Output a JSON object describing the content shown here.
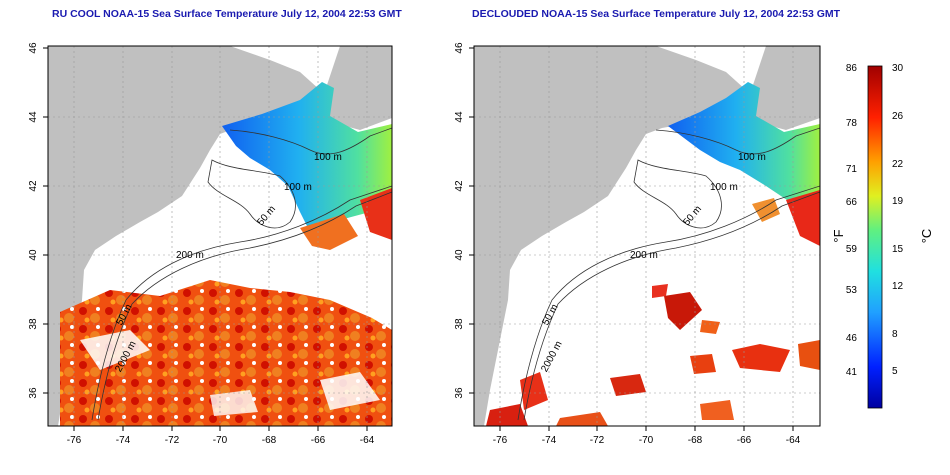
{
  "panels": [
    {
      "title": "RU COOL NOAA-15 Sea Surface Temperature July 12, 2004 22:53 GMT",
      "contours": {
        "c100": "100 m",
        "c50": "50 m",
        "c200": "200 m",
        "c2000": "2000 m",
        "c100b": "100 m",
        "c50b": "50 m"
      }
    },
    {
      "title": "DECLOUDED NOAA-15 Sea Surface Temperature July 12, 2004 22:53 GMT",
      "contours": {
        "c100": "100 m",
        "c50": "50 m",
        "c200": "200 m",
        "c2000": "2000 m",
        "c100b": "100 m",
        "c50b": "50 m"
      }
    }
  ],
  "axes": {
    "x_ticks": [
      "-76",
      "-74",
      "-72",
      "-70",
      "-68",
      "-66",
      "-64"
    ],
    "y_ticks": [
      "46",
      "44",
      "42",
      "40",
      "38",
      "36"
    ]
  },
  "colorbar": {
    "fahrenheit_ticks": [
      "86",
      "78",
      "71",
      "66",
      "59",
      "53",
      "46",
      "41"
    ],
    "celsius_ticks": [
      "30",
      "26",
      "22",
      "19",
      "15",
      "12",
      "8",
      "5"
    ],
    "fahrenheit_label": "°F",
    "celsius_label": "°C",
    "colors": {
      "low": "#0000a0",
      "mid": "#20d0e0",
      "high": "#a00000"
    }
  }
}
